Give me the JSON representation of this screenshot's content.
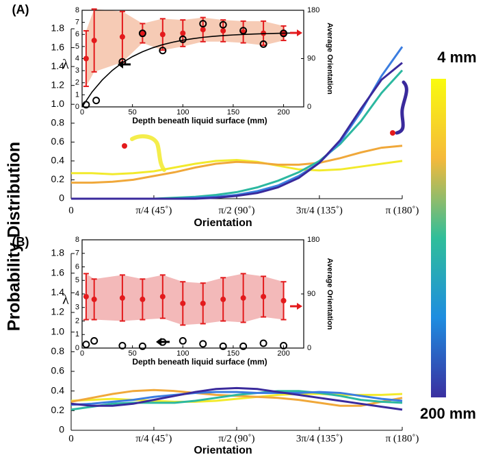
{
  "y_label": "Probability Distribution",
  "colorbar": {
    "labels": [
      "4 mm",
      "200 mm"
    ],
    "colors": [
      "#f9fb0e",
      "#f5b93a",
      "#2fbe9a",
      "#1e8de0",
      "#3a2fa0"
    ]
  },
  "chart_data": [
    {
      "type": "line",
      "panel_label": "(A)",
      "x_label": "Orientation",
      "x": [
        0,
        0.196,
        0.393,
        0.589,
        0.785,
        0.982,
        1.178,
        1.374,
        1.571,
        1.767,
        1.963,
        2.16,
        2.356,
        2.553,
        2.749,
        2.945,
        3.142
      ],
      "series": [
        {
          "color": "#f2ea2c",
          "values": [
            0.27,
            0.27,
            0.26,
            0.27,
            0.29,
            0.33,
            0.37,
            0.4,
            0.41,
            0.39,
            0.35,
            0.31,
            0.3,
            0.31,
            0.34,
            0.37,
            0.4
          ]
        },
        {
          "color": "#f0a83a",
          "values": [
            0.17,
            0.17,
            0.18,
            0.2,
            0.24,
            0.28,
            0.33,
            0.37,
            0.39,
            0.38,
            0.36,
            0.36,
            0.38,
            0.43,
            0.49,
            0.54,
            0.56
          ]
        },
        {
          "color": "#2cb8a0",
          "values": [
            0,
            0,
            0,
            0,
            0,
            0.01,
            0.02,
            0.04,
            0.07,
            0.12,
            0.19,
            0.28,
            0.4,
            0.58,
            0.82,
            1.12,
            1.36
          ]
        },
        {
          "color": "#3b7de0",
          "values": [
            0,
            0,
            0,
            0,
            0,
            0,
            0.01,
            0.02,
            0.04,
            0.08,
            0.14,
            0.24,
            0.38,
            0.6,
            0.92,
            1.3,
            1.61
          ]
        },
        {
          "color": "#3a2a9c",
          "values": [
            0,
            0,
            0,
            0,
            0,
            0,
            0,
            0.01,
            0.03,
            0.06,
            0.12,
            0.22,
            0.38,
            0.62,
            0.95,
            1.26,
            1.44
          ]
        }
      ],
      "xlim": [
        0,
        3.142
      ],
      "xticks": [
        0,
        {
          "value": 0.785,
          "label": "π/4 (45˚)"
        },
        {
          "value": 1.571,
          "label": "π/2 (90˚)"
        },
        {
          "value": 2.356,
          "label": "3π/4 (135˚)"
        },
        {
          "value": 3.142,
          "label": "π (180˚)"
        }
      ],
      "ylim": [
        0,
        1.8
      ],
      "yticks": [
        0,
        0.2,
        0.4,
        0.6,
        0.8,
        {
          "value": 1,
          "label": "1.0"
        },
        1.2,
        1.4,
        1.6,
        1.8
      ]
    },
    {
      "type": "scatter",
      "x_label": "Depth beneath liquid surface (mm)",
      "y_label": "λ",
      "y2_label": "Average Orientation",
      "band_color": "#f6cbb5",
      "series": [
        {
          "type": "errorbar",
          "color": "#e31a1c",
          "x": [
            4,
            12,
            40,
            60,
            80,
            100,
            120,
            140,
            160,
            180,
            200
          ],
          "values": [
            4,
            5.5,
            5.8,
            6.1,
            6,
            6.1,
            6.4,
            6.3,
            6.2,
            6.1,
            6.1
          ],
          "errors": [
            2.3,
            2.6,
            2.1,
            0.8,
            1.3,
            1.1,
            1,
            0.9,
            0.9,
            1,
            0.6
          ]
        },
        {
          "type": "circle",
          "axis": "y2",
          "color": "#000000",
          "x": [
            4,
            14,
            40,
            60,
            80,
            100,
            120,
            140,
            160,
            180,
            200
          ],
          "values": [
            4,
            12,
            84,
            137,
            105,
            126,
            155,
            153,
            142,
            117,
            137
          ]
        },
        {
          "type": "line",
          "axis": "y2",
          "color": "#000000",
          "x": [
            0,
            10,
            20,
            30,
            40,
            50,
            60,
            70,
            80,
            90,
            100,
            110,
            120,
            130,
            140,
            150,
            160,
            170,
            180,
            190,
            200,
            210
          ],
          "values": [
            0,
            27.9,
            50.2,
            68.1,
            82.3,
            93.7,
            102.8,
            110.1,
            115.9,
            120.5,
            124.2,
            127.2,
            129.6,
            131.4,
            132.9,
            134,
            135,
            135.7,
            136.4,
            136.9,
            137.3,
            137.6
          ]
        }
      ],
      "xlim": [
        0,
        220
      ],
      "xticks": [
        0,
        50,
        100,
        150,
        200
      ],
      "ylim": [
        0,
        8
      ],
      "yticks": [
        0,
        1,
        2,
        3,
        4,
        5,
        6,
        7,
        8
      ],
      "y2lim": [
        0,
        180
      ],
      "y2ticks": [
        0,
        90,
        180
      ]
    },
    {
      "type": "line",
      "panel_label": "(B)",
      "x_label": "Orientation",
      "x": [
        0,
        0.196,
        0.393,
        0.589,
        0.785,
        0.982,
        1.178,
        1.374,
        1.571,
        1.767,
        1.963,
        2.16,
        2.356,
        2.553,
        2.749,
        2.945,
        3.142
      ],
      "series": [
        {
          "color": "#f2ea2c",
          "values": [
            0.3,
            0.31,
            0.32,
            0.31,
            0.3,
            0.29,
            0.29,
            0.3,
            0.32,
            0.34,
            0.36,
            0.37,
            0.37,
            0.36,
            0.36,
            0.36,
            0.37
          ]
        },
        {
          "color": "#f0a83a",
          "values": [
            0.29,
            0.33,
            0.37,
            0.4,
            0.41,
            0.4,
            0.38,
            0.36,
            0.35,
            0.34,
            0.33,
            0.31,
            0.28,
            0.25,
            0.25,
            0.29,
            0.33
          ]
        },
        {
          "color": "#2cb8a0",
          "values": [
            0.21,
            0.24,
            0.27,
            0.28,
            0.28,
            0.28,
            0.3,
            0.33,
            0.36,
            0.38,
            0.4,
            0.4,
            0.38,
            0.35,
            0.31,
            0.29,
            0.28
          ]
        },
        {
          "color": "#3b7de0",
          "values": [
            0.26,
            0.27,
            0.29,
            0.31,
            0.34,
            0.36,
            0.38,
            0.39,
            0.39,
            0.38,
            0.38,
            0.38,
            0.39,
            0.38,
            0.35,
            0.32,
            0.3
          ]
        },
        {
          "color": "#3a2a9c",
          "values": [
            0.27,
            0.25,
            0.25,
            0.27,
            0.31,
            0.35,
            0.39,
            0.42,
            0.43,
            0.42,
            0.39,
            0.36,
            0.33,
            0.3,
            0.27,
            0.24,
            0.21
          ]
        }
      ],
      "xlim": [
        0,
        3.142
      ],
      "xticks": [
        0,
        {
          "value": 0.785,
          "label": "π/4 (45˚)"
        },
        {
          "value": 1.571,
          "label": "π/2 (90˚)"
        },
        {
          "value": 2.356,
          "label": "3π/4 (135˚)"
        },
        {
          "value": 3.142,
          "label": "π (180˚)"
        }
      ],
      "ylim": [
        0,
        1.8
      ],
      "yticks": [
        0,
        0.2,
        0.4,
        0.6,
        0.8,
        {
          "value": 1,
          "label": "1.0"
        },
        1.2,
        1.4,
        1.6,
        1.8
      ]
    },
    {
      "type": "scatter",
      "x_label": "Depth beneath liquid surface (mm)",
      "y_label": "λ",
      "y2_label": "Average Orientation",
      "band_color": "#f3b9b9",
      "series": [
        {
          "type": "errorbar",
          "color": "#e31a1c",
          "x": [
            4,
            12,
            40,
            60,
            80,
            100,
            120,
            140,
            160,
            180,
            200
          ],
          "values": [
            3.8,
            3.6,
            3.7,
            3.6,
            3.8,
            3.3,
            3.3,
            3.6,
            3.7,
            3.8,
            3.5
          ],
          "errors": [
            1.7,
            1.5,
            1.7,
            1.5,
            1.6,
            1.6,
            1.5,
            1.6,
            1.8,
            1.5,
            1.4
          ]
        },
        {
          "type": "circle",
          "axis": "y2",
          "color": "#000000",
          "x": [
            4,
            12,
            40,
            60,
            80,
            100,
            120,
            140,
            160,
            180,
            200
          ],
          "values": [
            6,
            12,
            4,
            3,
            10,
            12,
            7,
            3,
            3,
            8,
            4
          ]
        }
      ],
      "xlim": [
        0,
        220
      ],
      "xticks": [
        0,
        50,
        100,
        150,
        200
      ],
      "ylim": [
        0,
        8
      ],
      "yticks": [
        0,
        1,
        2,
        3,
        4,
        5,
        6,
        7,
        8
      ],
      "y2lim": [
        0,
        180
      ],
      "y2ticks": [
        0,
        90,
        180
      ]
    }
  ]
}
